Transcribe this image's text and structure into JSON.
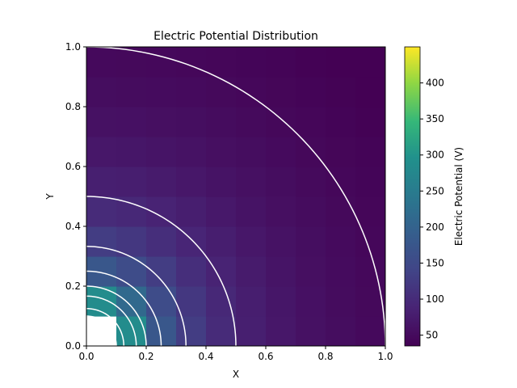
{
  "chart_data": {
    "type": "heatmap",
    "title": "Electric Potential Distribution",
    "xlabel": "X",
    "ylabel": "Y",
    "xlim": [
      0,
      1
    ],
    "ylim": [
      0,
      1
    ],
    "x_ticks": [
      "0.0",
      "0.2",
      "0.4",
      "0.6",
      "0.8",
      "1.0"
    ],
    "y_ticks": [
      "0.0",
      "0.2",
      "0.4",
      "0.6",
      "0.8",
      "1.0"
    ],
    "grid": false,
    "colormap": "viridis",
    "colorbar": {
      "label": "Electric Potential (V)",
      "range": [
        35,
        450
      ],
      "ticks": [
        "50",
        "100",
        "150",
        "200",
        "250",
        "300",
        "350",
        "400"
      ]
    },
    "potential_model": "V = 450 / (10 * sqrt(x^2 + y^2)) (V), clipped to the color range",
    "grid_spacing": 0.1,
    "undefined_cell_color": "#ffffff",
    "contour_color": "#ffffff",
    "contour_radii": [
      0.1,
      0.125,
      0.1667,
      0.2,
      0.25,
      0.333,
      0.5,
      1.0
    ]
  }
}
